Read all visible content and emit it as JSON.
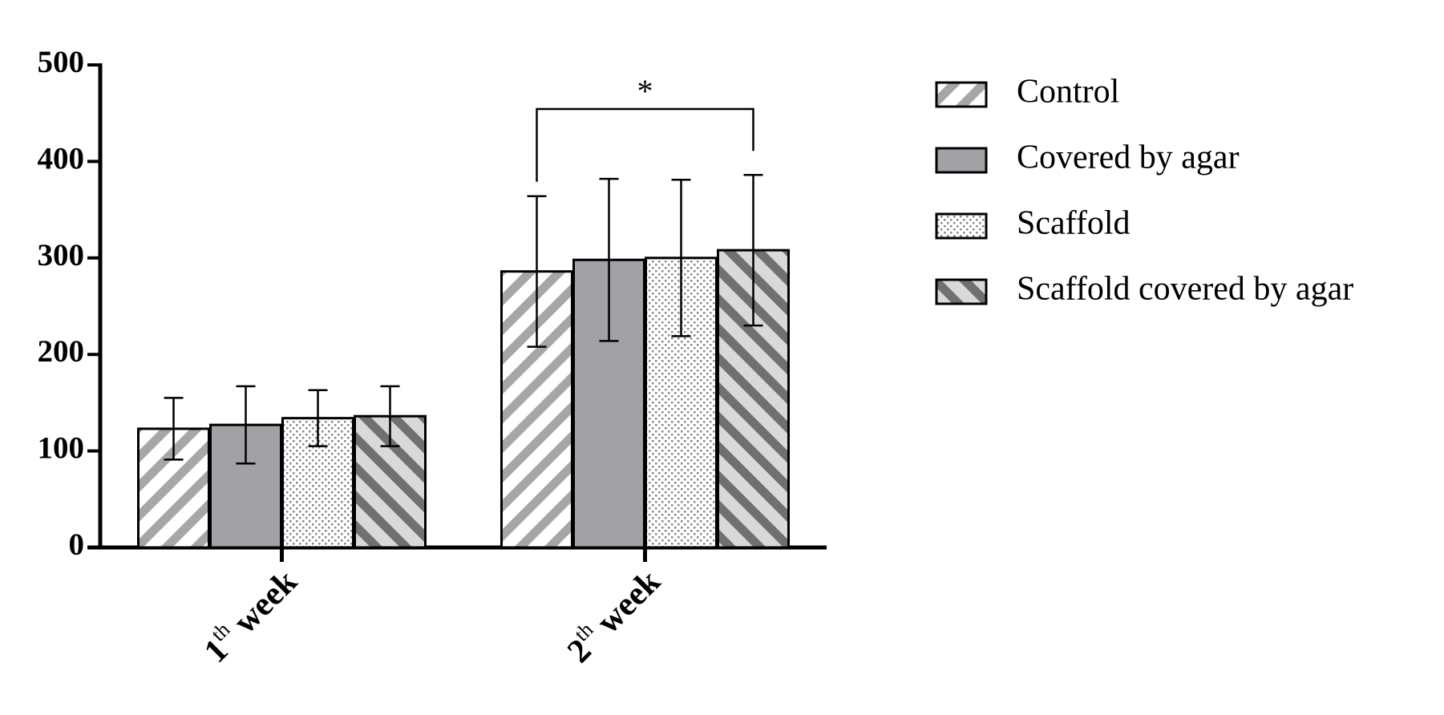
{
  "chart_data": {
    "type": "bar",
    "categories": [
      "1th week",
      "2th week"
    ],
    "series": [
      {
        "name": "Control",
        "color": "#ffffff",
        "pattern": "stripes-up",
        "pattern_color": "#a6a6a6",
        "values": [
          123,
          286
        ],
        "errors": [
          32,
          78
        ]
      },
      {
        "name": "Covered by agar",
        "color": "#a2a2a6",
        "pattern": "solid",
        "pattern_color": "#a2a2a6",
        "values": [
          127,
          298
        ],
        "errors": [
          40,
          84
        ]
      },
      {
        "name": "Scaffold",
        "color": "#ffffff",
        "pattern": "dots",
        "pattern_color": "#8a8a8a",
        "values": [
          134,
          300
        ],
        "errors": [
          29,
          81
        ]
      },
      {
        "name": "Scaffold covered by agar",
        "color": "#d9d9d9",
        "pattern": "stripes-down",
        "pattern_color": "#707070",
        "values": [
          136,
          308
        ],
        "errors": [
          31,
          78
        ]
      }
    ],
    "ylim": [
      0,
      500
    ],
    "yticks": [
      0,
      100,
      200,
      300,
      400,
      500
    ],
    "grid": false,
    "legend": "right",
    "annotations": [
      {
        "text": "*",
        "category": 1,
        "from_series": 0,
        "to_series": 3
      }
    ]
  }
}
